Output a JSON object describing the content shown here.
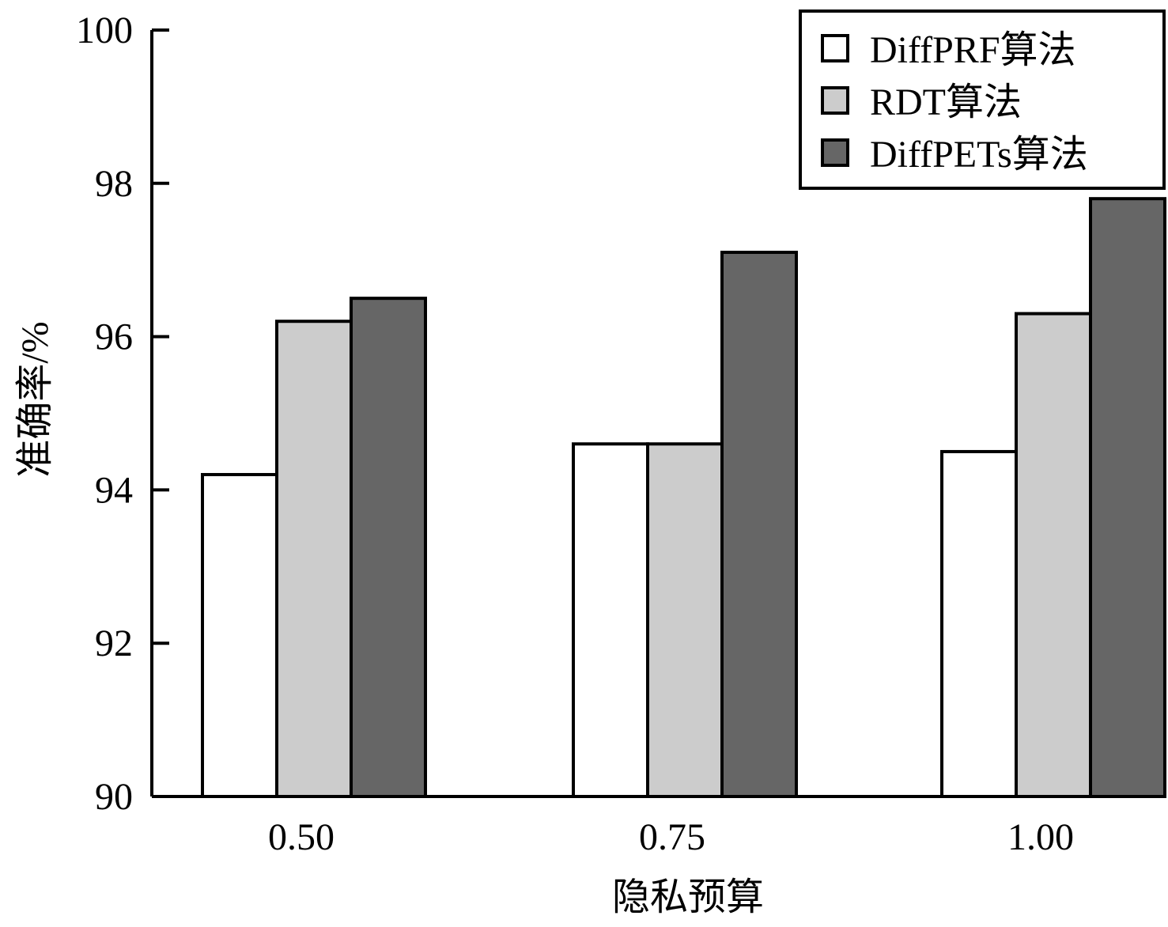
{
  "chart_data": {
    "type": "bar",
    "title": "",
    "xlabel": "隐私预算",
    "ylabel": "准确率/%",
    "ylim": [
      90,
      100
    ],
    "yticks": [
      90,
      92,
      94,
      96,
      98,
      100
    ],
    "categories": [
      "0.50",
      "0.75",
      "1.00"
    ],
    "series": [
      {
        "name": "DiffPRF算法",
        "color": "#ffffff",
        "values": [
          94.2,
          94.6,
          94.5
        ]
      },
      {
        "name": "RDT算法",
        "color": "#cccccc",
        "values": [
          96.2,
          94.6,
          96.3
        ]
      },
      {
        "name": "DiffPETs算法",
        "color": "#666666",
        "values": [
          96.5,
          97.1,
          97.8
        ]
      }
    ],
    "legend_position": "top-right",
    "grid": false
  }
}
